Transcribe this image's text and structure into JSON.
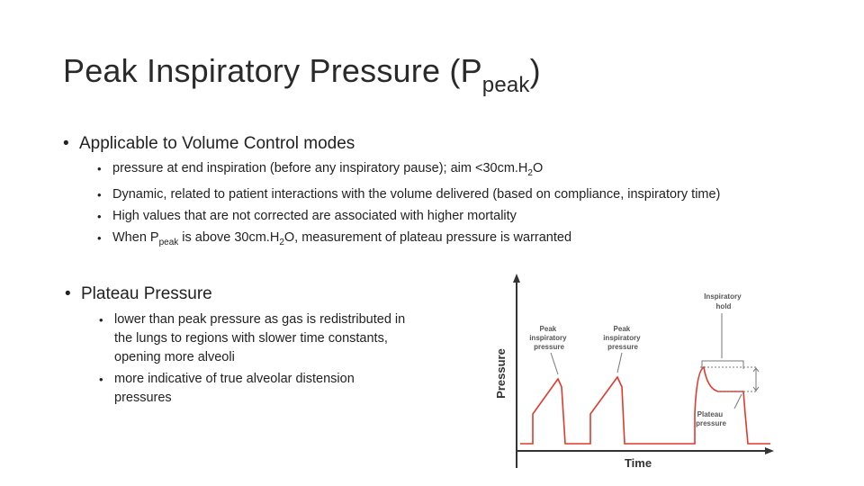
{
  "title": {
    "main": "Peak Inspiratory Pressure (P",
    "sub": "peak",
    "end": ")"
  },
  "section1": {
    "heading": "Applicable to Volume Control modes",
    "items": [
      {
        "a": "pressure at end inspiration (before any inspiratory pause); aim <30cm.H",
        "sub": "2",
        "b": "O"
      },
      {
        "text": "Dynamic, related to patient interactions with the volume delivered (based on compliance, inspiratory time)"
      },
      {
        "text": "High values that are not corrected are associated with higher mortality"
      },
      {
        "a": "When P",
        "sub": "peak",
        "b": " is above 30cm.H",
        "sub2": "2",
        "c": "O, measurement of plateau pressure is warranted"
      }
    ]
  },
  "section2": {
    "heading": "Plateau Pressure",
    "items": [
      "lower than peak pressure as gas is redistributed in the lungs to regions with slower time constants, opening more alveoli",
      "more indicative of true alveolar distension pressures"
    ]
  },
  "figure": {
    "ylabel": "Pressure",
    "xlabel": "Time",
    "annotations": {
      "peak1": [
        "Peak",
        "inspiratory",
        "pressure"
      ],
      "peak2": [
        "Peak",
        "inspiratory",
        "pressure"
      ],
      "hold": [
        "Inspiratory",
        "hold"
      ],
      "plateau": [
        "Plateau",
        "pressure"
      ]
    },
    "colors": {
      "waveform": "#e03a2e",
      "axis": "#333333",
      "label": "#555555"
    }
  }
}
